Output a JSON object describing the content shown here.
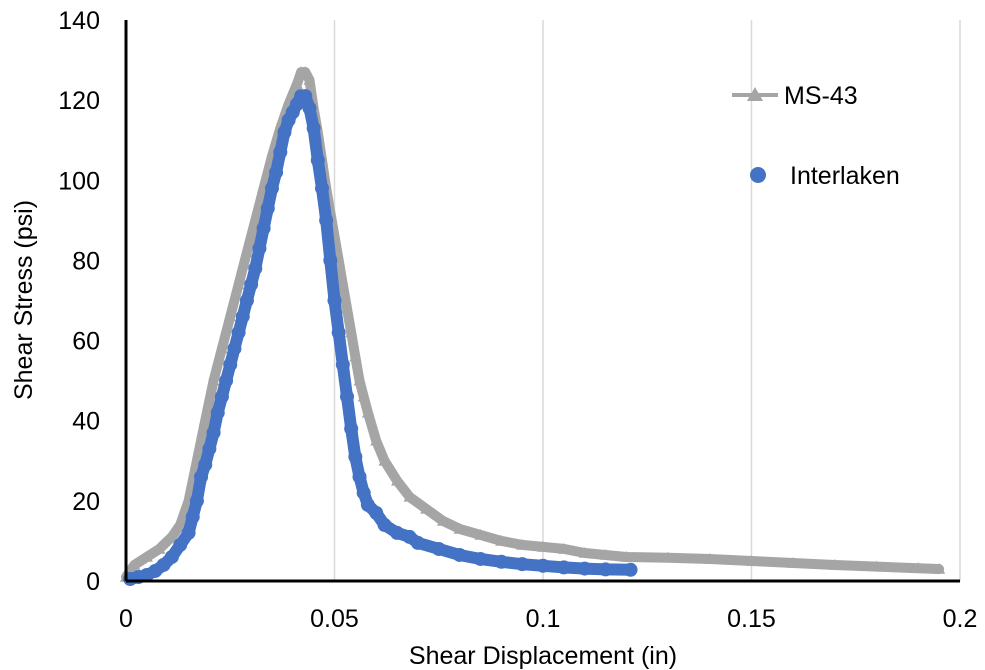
{
  "chart_data": {
    "type": "scatter",
    "title": "",
    "xlabel": "Shear Displacement (in)",
    "ylabel": "Shear Stress (psi)",
    "xlim": [
      0,
      0.2
    ],
    "ylim": [
      0,
      140
    ],
    "xticks": [
      0,
      0.05,
      0.1,
      0.15,
      0.2
    ],
    "xtick_labels": [
      "0",
      "0.05",
      "0.1",
      "0.15",
      "0.2"
    ],
    "yticks": [
      0,
      20,
      40,
      60,
      80,
      100,
      120,
      140
    ],
    "ytick_labels": [
      "0",
      "20",
      "40",
      "60",
      "80",
      "100",
      "120",
      "140"
    ],
    "grid": "vertical",
    "legend_position": "top-right",
    "series": [
      {
        "name": "MS-43",
        "color": "#a5a5a5",
        "marker": "triangle",
        "points": [
          [
            0.0,
            1
          ],
          [
            0.002,
            4
          ],
          [
            0.005,
            6
          ],
          [
            0.008,
            8
          ],
          [
            0.011,
            11
          ],
          [
            0.013,
            14
          ],
          [
            0.015,
            20
          ],
          [
            0.017,
            30
          ],
          [
            0.019,
            40
          ],
          [
            0.021,
            50
          ],
          [
            0.023,
            58
          ],
          [
            0.025,
            66
          ],
          [
            0.027,
            74
          ],
          [
            0.029,
            82
          ],
          [
            0.031,
            90
          ],
          [
            0.033,
            98
          ],
          [
            0.035,
            106
          ],
          [
            0.037,
            113
          ],
          [
            0.039,
            119
          ],
          [
            0.041,
            124
          ],
          [
            0.042,
            127
          ],
          [
            0.043,
            127
          ],
          [
            0.044,
            125
          ],
          [
            0.045,
            118
          ],
          [
            0.046,
            112
          ],
          [
            0.047,
            105
          ],
          [
            0.048,
            98
          ],
          [
            0.049,
            92
          ],
          [
            0.05,
            86
          ],
          [
            0.051,
            80
          ],
          [
            0.052,
            74
          ],
          [
            0.053,
            68
          ],
          [
            0.054,
            62
          ],
          [
            0.055,
            56
          ],
          [
            0.056,
            50
          ],
          [
            0.057,
            46
          ],
          [
            0.058,
            42
          ],
          [
            0.06,
            35
          ],
          [
            0.062,
            30
          ],
          [
            0.065,
            25
          ],
          [
            0.068,
            21
          ],
          [
            0.072,
            18
          ],
          [
            0.076,
            15
          ],
          [
            0.08,
            13
          ],
          [
            0.085,
            11.5
          ],
          [
            0.09,
            10
          ],
          [
            0.095,
            9
          ],
          [
            0.1,
            8.5
          ],
          [
            0.105,
            8
          ],
          [
            0.11,
            7
          ],
          [
            0.115,
            6.5
          ],
          [
            0.12,
            6
          ],
          [
            0.13,
            5.8
          ],
          [
            0.14,
            5.5
          ],
          [
            0.15,
            5
          ],
          [
            0.16,
            4.5
          ],
          [
            0.17,
            4
          ],
          [
            0.18,
            3.6
          ],
          [
            0.19,
            3.2
          ],
          [
            0.195,
            3
          ]
        ]
      },
      {
        "name": "Interlaken",
        "color": "#4472c4",
        "marker": "circle",
        "points": [
          [
            0.001,
            0.5
          ],
          [
            0.003,
            1
          ],
          [
            0.005,
            1.5
          ],
          [
            0.007,
            2.5
          ],
          [
            0.009,
            4
          ],
          [
            0.011,
            6
          ],
          [
            0.013,
            9
          ],
          [
            0.015,
            12
          ],
          [
            0.016,
            16
          ],
          [
            0.017,
            20
          ],
          [
            0.018,
            26
          ],
          [
            0.019,
            29
          ],
          [
            0.02,
            33
          ],
          [
            0.021,
            37
          ],
          [
            0.022,
            42
          ],
          [
            0.023,
            46
          ],
          [
            0.024,
            50
          ],
          [
            0.025,
            54
          ],
          [
            0.026,
            58
          ],
          [
            0.027,
            62
          ],
          [
            0.028,
            66
          ],
          [
            0.029,
            70
          ],
          [
            0.03,
            74
          ],
          [
            0.031,
            78
          ],
          [
            0.032,
            83
          ],
          [
            0.033,
            88
          ],
          [
            0.034,
            93
          ],
          [
            0.035,
            98
          ],
          [
            0.036,
            102
          ],
          [
            0.037,
            107
          ],
          [
            0.038,
            112
          ],
          [
            0.039,
            115
          ],
          [
            0.04,
            117
          ],
          [
            0.041,
            119
          ],
          [
            0.042,
            121
          ],
          [
            0.043,
            121
          ],
          [
            0.044,
            118
          ],
          [
            0.045,
            113
          ],
          [
            0.046,
            105
          ],
          [
            0.047,
            98
          ],
          [
            0.048,
            90
          ],
          [
            0.049,
            80
          ],
          [
            0.05,
            70
          ],
          [
            0.051,
            62
          ],
          [
            0.052,
            54
          ],
          [
            0.053,
            46
          ],
          [
            0.054,
            38
          ],
          [
            0.055,
            31
          ],
          [
            0.056,
            26
          ],
          [
            0.057,
            22
          ],
          [
            0.058,
            19
          ],
          [
            0.06,
            17
          ],
          [
            0.062,
            14
          ],
          [
            0.065,
            12
          ],
          [
            0.068,
            11
          ],
          [
            0.07,
            9.5
          ],
          [
            0.075,
            8
          ],
          [
            0.08,
            6.5
          ],
          [
            0.085,
            5.5
          ],
          [
            0.09,
            4.8
          ],
          [
            0.095,
            4.2
          ],
          [
            0.1,
            3.8
          ],
          [
            0.105,
            3.4
          ],
          [
            0.11,
            3.1
          ],
          [
            0.115,
            2.9
          ],
          [
            0.121,
            2.8
          ]
        ]
      }
    ]
  }
}
